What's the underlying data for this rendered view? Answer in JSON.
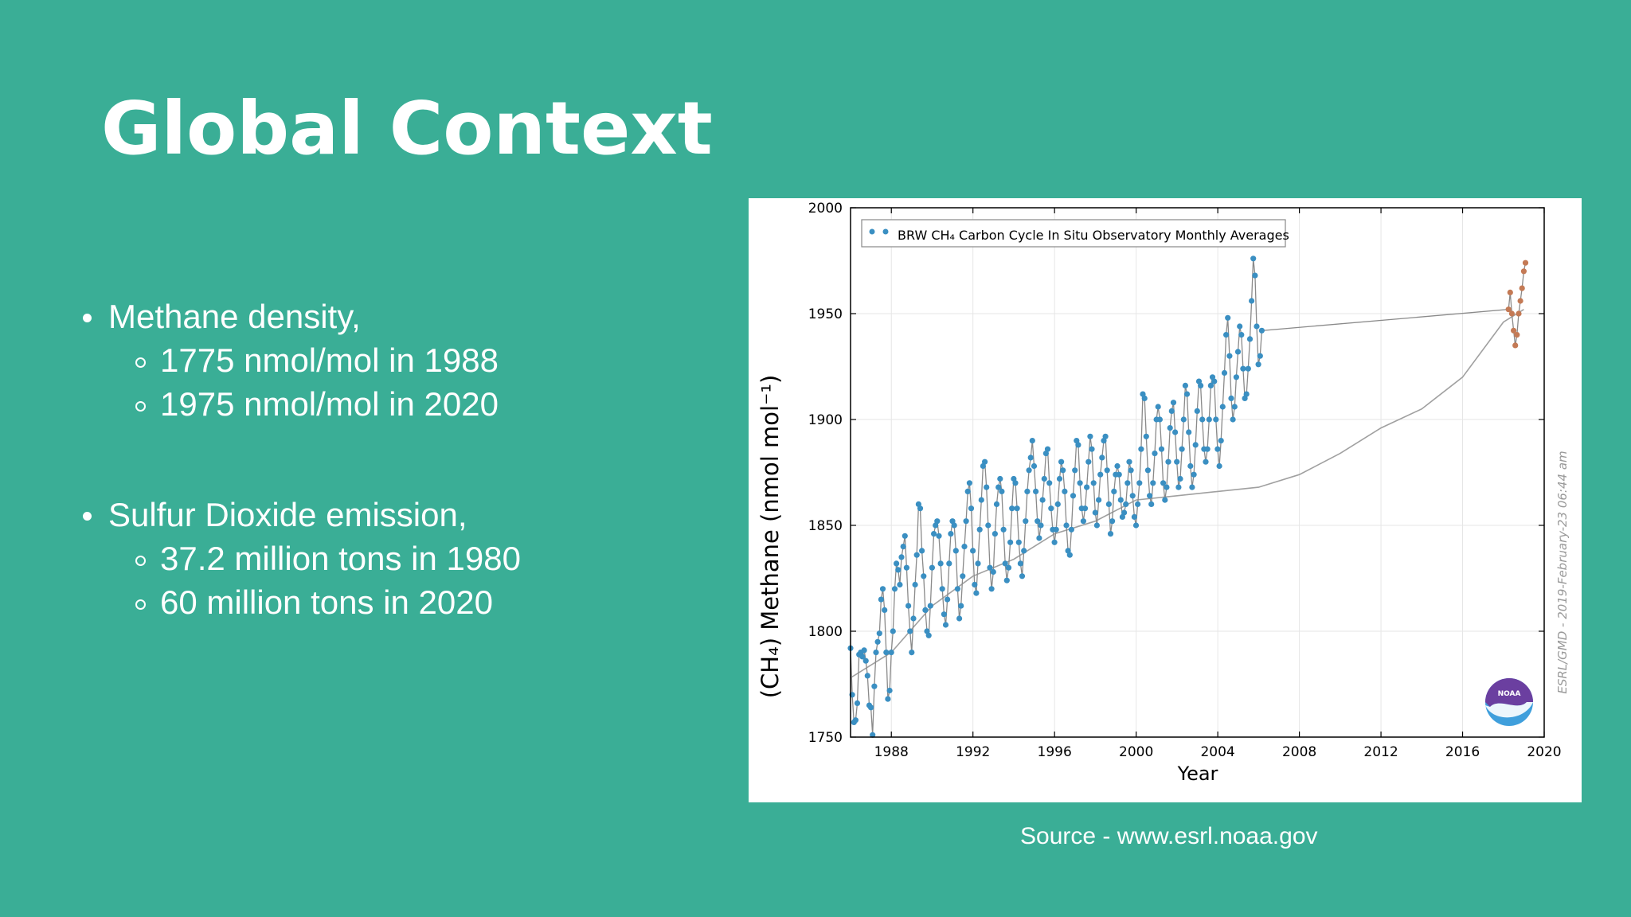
{
  "slide": {
    "title": "Global Context",
    "source": "Source - www.esrl.noaa.gov"
  },
  "bullets": [
    {
      "text": "Methane density,",
      "subs": [
        "1775 nmol/mol in 1988",
        "1975 nmol/mol in 2020"
      ]
    },
    {
      "text": "Sulfur Dioxide emission,",
      "subs": [
        "37.2 million tons in 1980",
        "60 million tons in 2020"
      ]
    }
  ],
  "colors": {
    "background": "#3aae96",
    "points_final": "#3a8fc2",
    "points_preliminary": "#c47a55",
    "line": "#8a8a8a"
  },
  "chart_data": {
    "type": "scatter",
    "ylabel": "(CH₄) Methane (nmol mol⁻¹)",
    "xlabel": "Year",
    "legend": "BRW CH₄ Carbon Cycle In Situ Observatory Monthly Averages",
    "legend_position": "top-left",
    "watermark": "ESRL/GMD - 2019-February-23 06:44 am",
    "logo_text": "NOAA",
    "xlim": [
      1986,
      2020
    ],
    "ylim": [
      1750,
      2000
    ],
    "xticks": [
      1988,
      1992,
      1996,
      2000,
      2004,
      2008,
      2012,
      2016,
      2020
    ],
    "yticks": [
      1750,
      1800,
      1850,
      1900,
      1950,
      2000
    ],
    "series": [
      {
        "type": "points",
        "x_start": 1986,
        "x_step": 0.0833,
        "values": [
          1792,
          1770,
          1757,
          1758,
          1766,
          1789,
          1790,
          1788,
          1791,
          1786,
          1779,
          1765,
          1764,
          1751,
          1774,
          1790,
          1795,
          1799,
          1815,
          1820,
          1810,
          1790,
          1768,
          1772,
          1790,
          1800,
          1820,
          1832,
          1829,
          1822,
          1835,
          1840,
          1845,
          1830,
          1812,
          1800,
          1790,
          1806,
          1822,
          1836,
          1860,
          1858,
          1838,
          1826,
          1810,
          1800,
          1798,
          1812,
          1830,
          1846,
          1850,
          1852,
          1845,
          1832,
          1820,
          1808,
          1803,
          1815,
          1832,
          1846,
          1852,
          1850,
          1838,
          1820,
          1806,
          1812,
          1826,
          1840,
          1852,
          1866,
          1870,
          1858,
          1838,
          1822,
          1818,
          1832,
          1848,
          1862,
          1878,
          1880,
          1868,
          1850,
          1830,
          1820,
          1828,
          1846,
          1860,
          1868,
          1872,
          1866,
          1848,
          1832,
          1824,
          1830,
          1842,
          1858,
          1872,
          1870,
          1858,
          1842,
          1832,
          1826,
          1838,
          1852,
          1866,
          1876,
          1882,
          1890,
          1878,
          1866,
          1852,
          1844,
          1850,
          1862,
          1872,
          1884,
          1886,
          1870,
          1858,
          1848,
          1842,
          1848,
          1860,
          1872,
          1880,
          1876,
          1866,
          1850,
          1838,
          1836,
          1848,
          1864,
          1876,
          1890,
          1888,
          1870,
          1858,
          1852,
          1858,
          1868,
          1880,
          1892,
          1886,
          1870,
          1856,
          1850,
          1862,
          1874,
          1882,
          1890,
          1892,
          1876,
          1860,
          1846,
          1852,
          1866,
          1874,
          1878,
          1874,
          1862,
          1854,
          1856,
          1860,
          1870,
          1880,
          1876,
          1864,
          1854,
          1850,
          1860,
          1870,
          1886,
          1912,
          1910,
          1892,
          1876,
          1864,
          1860,
          1870,
          1884,
          1900,
          1906,
          1900,
          1886,
          1870,
          1862,
          1868,
          1880,
          1896,
          1904,
          1908,
          1894,
          1880,
          1868,
          1872,
          1886,
          1900,
          1916,
          1912,
          1894,
          1878,
          1868,
          1874,
          1888,
          1904,
          1918,
          1916,
          1900,
          1886,
          1880,
          1886,
          1900,
          1916,
          1920,
          1918,
          1900,
          1886,
          1878,
          1890,
          1906,
          1922,
          1940,
          1948,
          1930,
          1910,
          1900,
          1906,
          1920,
          1932,
          1944,
          1940,
          1924,
          1910,
          1912,
          1924,
          1938,
          1956,
          1976,
          1968,
          1944,
          1926,
          1930,
          1942
        ],
        "color": "#3a8fc2"
      },
      {
        "type": "points",
        "x_start": 2018.25,
        "x_step": 0.0833,
        "values": [
          1952,
          1960,
          1950,
          1942,
          1935,
          1940,
          1950,
          1956,
          1962,
          1970,
          1974
        ],
        "color": "#c47a55"
      }
    ],
    "trend": {
      "x": [
        1986,
        1988,
        1990,
        1992,
        1994,
        1996,
        1998,
        2000,
        2002,
        2004,
        2006,
        2008,
        2010,
        2012,
        2014,
        2016,
        2018,
        2019
      ],
      "y": [
        1778,
        1790,
        1812,
        1826,
        1834,
        1846,
        1852,
        1862,
        1864,
        1866,
        1868,
        1874,
        1884,
        1896,
        1905,
        1920,
        1946,
        1952
      ]
    }
  }
}
